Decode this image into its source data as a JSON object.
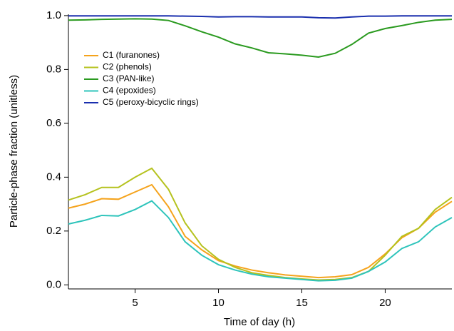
{
  "chart_data": {
    "type": "line",
    "x_label": "Time of day (h)",
    "y_label": "Particle-phase fraction (unitless)",
    "x": [
      1,
      2,
      3,
      4,
      5,
      6,
      7,
      8,
      9,
      10,
      11,
      12,
      13,
      14,
      15,
      16,
      17,
      18,
      19,
      20,
      21,
      22,
      23,
      24
    ],
    "xlim": [
      1,
      24
    ],
    "xticks": [
      5,
      10,
      15,
      20
    ],
    "ylim": [
      -0.015,
      1.005
    ],
    "yticks": [
      {
        "value": 0,
        "label": "0.0"
      },
      0.2,
      0.4,
      0.6,
      0.8,
      {
        "value": 1,
        "label": "1.0"
      }
    ],
    "legend": "upper-left",
    "series": [
      {
        "name": "C1 (furanones)",
        "color": "#f5a31c",
        "values": [
          0.285,
          0.3,
          0.32,
          0.318,
          0.345,
          0.372,
          0.29,
          0.18,
          0.13,
          0.09,
          0.07,
          0.055,
          0.045,
          0.037,
          0.032,
          0.027,
          0.03,
          0.038,
          0.065,
          0.115,
          0.175,
          0.21,
          0.27,
          0.31
        ]
      },
      {
        "name": "C2 (phenols)",
        "color": "#b5c21e",
        "values": [
          0.315,
          0.335,
          0.362,
          0.362,
          0.4,
          0.433,
          0.355,
          0.23,
          0.145,
          0.095,
          0.065,
          0.045,
          0.035,
          0.027,
          0.022,
          0.018,
          0.02,
          0.027,
          0.05,
          0.11,
          0.18,
          0.21,
          0.28,
          0.325
        ]
      },
      {
        "name": "C3 (PAN-like)",
        "color": "#2a9a1f",
        "values": [
          0.983,
          0.984,
          0.986,
          0.987,
          0.988,
          0.987,
          0.982,
          0.962,
          0.94,
          0.92,
          0.895,
          0.88,
          0.862,
          0.858,
          0.853,
          0.846,
          0.86,
          0.893,
          0.935,
          0.952,
          0.963,
          0.975,
          0.983,
          0.986
        ]
      },
      {
        "name": "C4 (epoxides)",
        "color": "#2ec4bb",
        "values": [
          0.226,
          0.24,
          0.258,
          0.256,
          0.28,
          0.312,
          0.25,
          0.16,
          0.11,
          0.075,
          0.055,
          0.04,
          0.03,
          0.025,
          0.02,
          0.015,
          0.017,
          0.025,
          0.05,
          0.085,
          0.135,
          0.16,
          0.215,
          0.25
        ]
      },
      {
        "name": "C5 (peroxy-bicyclic rings)",
        "color": "#1a2fae",
        "values": [
          0.999,
          0.999,
          0.999,
          0.999,
          0.999,
          0.999,
          0.999,
          0.998,
          0.997,
          0.995,
          0.996,
          0.996,
          0.995,
          0.995,
          0.995,
          0.992,
          0.991,
          0.995,
          0.998,
          0.998,
          0.999,
          0.999,
          0.999,
          0.999
        ]
      }
    ]
  }
}
